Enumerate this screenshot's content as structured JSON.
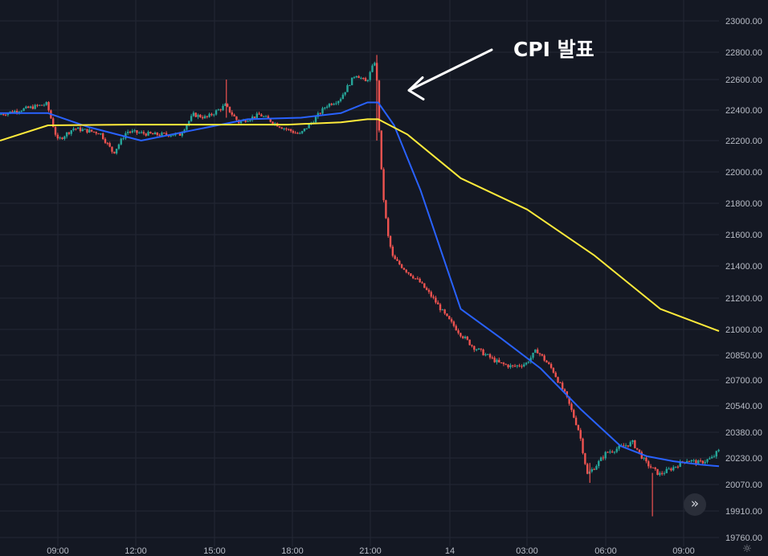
{
  "chart_data": {
    "type": "candlestick",
    "title": "",
    "ylim": [
      19700,
      23050
    ],
    "y_tick_labels": [
      "23000.00",
      "22800.00",
      "22600.00",
      "22400.00",
      "22200.00",
      "22000.00",
      "21800.00",
      "21600.00",
      "21400.00",
      "21200.00",
      "21000.00",
      "20850.00",
      "20700.00",
      "20540.00",
      "20380.00",
      "20230.00",
      "20070.00",
      "19910.00",
      "19760.00"
    ],
    "x_tick_labels": [
      "09:00",
      "12:00",
      "15:00",
      "18:00",
      "21:00",
      "14",
      "03:00",
      "06:00",
      "09:00"
    ],
    "x_hours_span": [
      7.2,
      34.2
    ],
    "grid": true,
    "annotation": {
      "text": "CPI 발표",
      "arrow_target": {
        "hour": 21.5,
        "price": 22550
      }
    },
    "series": [
      {
        "role": "price-candles",
        "up_color": "#26a69a",
        "down_color": "#ef5350",
        "price_path": [
          [
            7.2,
            22370
          ],
          [
            9.0,
            22440
          ],
          [
            9.4,
            22200
          ],
          [
            10.0,
            22280
          ],
          [
            11.0,
            22250
          ],
          [
            11.5,
            22120
          ],
          [
            12.0,
            22260
          ],
          [
            13.0,
            22240
          ],
          [
            14.0,
            22240
          ],
          [
            14.5,
            22370
          ],
          [
            15.0,
            22350
          ],
          [
            15.7,
            22430
          ],
          [
            16.2,
            22320
          ],
          [
            17.0,
            22370
          ],
          [
            17.8,
            22290
          ],
          [
            18.5,
            22240
          ],
          [
            19.0,
            22330
          ],
          [
            19.5,
            22430
          ],
          [
            20.0,
            22470
          ],
          [
            20.6,
            22640
          ],
          [
            21.0,
            22580
          ],
          [
            21.35,
            22750
          ],
          [
            21.5,
            22200
          ],
          [
            21.6,
            21900
          ],
          [
            21.8,
            21600
          ],
          [
            22.0,
            21450
          ],
          [
            22.5,
            21370
          ],
          [
            23.0,
            21300
          ],
          [
            23.5,
            21200
          ],
          [
            24.0,
            21080
          ],
          [
            24.5,
            20980
          ],
          [
            25.0,
            20900
          ],
          [
            25.5,
            20850
          ],
          [
            26.0,
            20800
          ],
          [
            26.5,
            20780
          ],
          [
            27.0,
            20800
          ],
          [
            27.4,
            20880
          ],
          [
            28.0,
            20760
          ],
          [
            28.5,
            20600
          ],
          [
            29.0,
            20380
          ],
          [
            29.3,
            20130
          ],
          [
            29.6,
            20180
          ],
          [
            30.0,
            20260
          ],
          [
            30.5,
            20290
          ],
          [
            31.0,
            20320
          ],
          [
            31.5,
            20200
          ],
          [
            32.0,
            20130
          ],
          [
            32.5,
            20170
          ],
          [
            33.0,
            20220
          ],
          [
            33.5,
            20200
          ],
          [
            34.0,
            20230
          ],
          [
            34.2,
            20270
          ]
        ]
      },
      {
        "role": "moving-average-fast",
        "color": "#2962ff",
        "x": [
          7.2,
          9.0,
          10.5,
          12.5,
          14.5,
          16.5,
          18.5,
          20.0,
          21.0,
          21.4,
          22.0,
          23.0,
          24.5,
          26.0,
          27.5,
          29.0,
          30.5,
          31.5,
          32.5,
          33.5,
          34.2
        ],
        "values": [
          22380,
          22380,
          22290,
          22200,
          22270,
          22340,
          22350,
          22380,
          22450,
          22450,
          22300,
          21880,
          21130,
          20950,
          20770,
          20520,
          20300,
          20240,
          20210,
          20190,
          20180
        ]
      },
      {
        "role": "moving-average-slow",
        "color": "#ffeb3b",
        "x": [
          7.2,
          9.0,
          12.0,
          15.0,
          18.0,
          20.0,
          21.0,
          21.4,
          22.5,
          24.5,
          27.0,
          29.5,
          32.0,
          34.2
        ],
        "values": [
          22200,
          22300,
          22305,
          22305,
          22305,
          22320,
          22340,
          22340,
          22240,
          21960,
          21760,
          21470,
          21130,
          20990
        ]
      }
    ]
  },
  "controls": {
    "scroll_label": "»",
    "settings_icon": "☼"
  }
}
